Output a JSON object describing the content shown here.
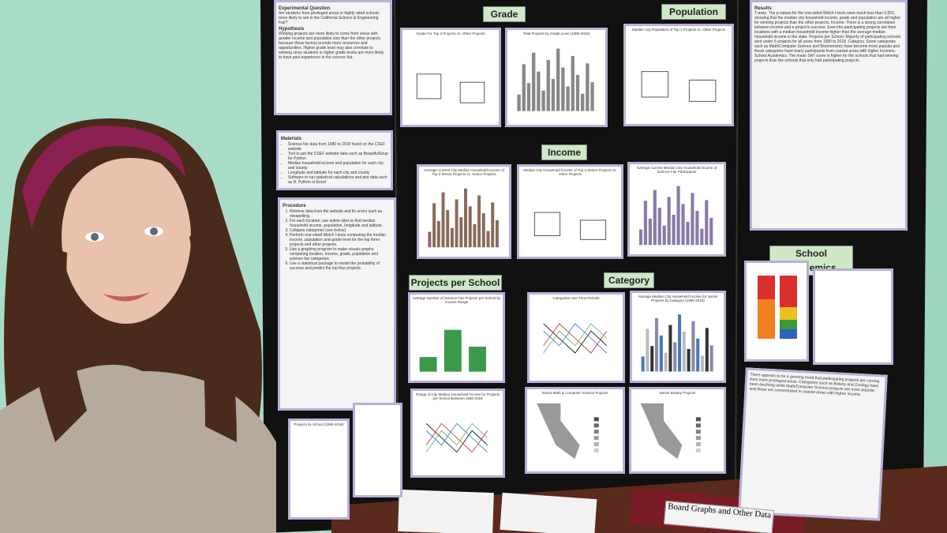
{
  "left_panel": {
    "question_title": "Experimental Question",
    "question": "Are students from privileged areas or highly rated schools more likely to win in the California Science & Engineering Fair?",
    "hypothesis_title": "Hypothesis",
    "hypothesis": "Winning projects are more likely to come from areas with greater income and population size than the other projects because these factors provide more resources and opportunities. Higher grade level may also correlate to winning since students in higher grade levels are more likely to have past experience in the science fair.",
    "materials_title": "Materials",
    "materials": [
      "Science fair data from 1980 to 2018 found on the CSEF website",
      "Tool to get the CSEF website data such as BeautifulSoup for Python",
      "Median household income and population for each city and county",
      "Longitude and latitude for each city and county",
      "Software to run statistical calculations and plot data such as R, Python or Excel"
    ],
    "procedure_title": "Procedure",
    "procedure": [
      "Retrieve data from the website and fix errors such as misspelling.",
      "For each location, use online sites to find median household income, population, longitude and latitude.",
      "Collapse categories (see below).",
      "Perform one-sided Welch t-tests comparing the median income, population and grade level for the top three projects and other projects.",
      "Use a graphing program to make visuals graphs comparing location, income, grade, population and science fair categories.",
      "Use a statistical package to model the probability of success and predict the top four projects."
    ],
    "map_title": "Projects by School (1980-2018)"
  },
  "sections": {
    "grade": "Grade",
    "population": "Population",
    "income": "Income",
    "projects_per_school": "Projects per School",
    "category": "Category",
    "school_academics": "School Academics"
  },
  "chart_titles": {
    "grade_box": "Grade For Top 3 Projects vs. Other Projects",
    "grade_bar": "Total Projects by Grade Level (1980-2018)",
    "population_box": "Median City Population of Top 3 Projects vs. Other Projects",
    "income_bar": "Average Current City Median Household Income of Top 3 Senior Projects vs. Senior Projects",
    "income_box": "Median City Household Income of Top 3 Senior Projects vs. Other Projects",
    "income_all": "Average Current Median City Household Income of Science Fair Participants",
    "pps_bar": "Average Number of Science Fair Projects per School by Income Range",
    "category_lines": "Categories over Time Periods",
    "category_bar": "Average Median City Household Income for Senior Projects by Category (1980-2018)",
    "pps_range": "Range of City Median Household Income for Projects per School Between 1980-2018",
    "map_math": "Senior Math & Computer Science Projects",
    "map_botany": "Senior Botany Projects"
  },
  "right_panel": {
    "results_title": "Results",
    "results": "T-tests. The p-values for the one-sided Welch t-tests were much less than 0.001, showing that the median city household income, grade and population are all higher for winning projects than the other projects. Income. There is a strong correlation between income and a project's success. Even the participating projects are from locations with a median household income higher than the average median household income in the state. Projects per School. Majority of participating schools sent under 5 projects for all years from 1980 to 2018. Category. Some categories such as Math/Computer Science and Biochemistry have become more popular and these categories have many participants from coastal areas with higher incomes. School Academics. The mean SAT score is higher for the schools that had winning projects than the schools that only had participating projects.",
    "conclusion": "There appears to be a growing trend that participating projects are coming from more privileged areas. Categories such as Botany and Zoology have been declining while Math/Computer Science projects are more popular, and these are concentrated in coastal areas with higher income."
  },
  "binder_label": "Board Graphs and Other Data"
}
